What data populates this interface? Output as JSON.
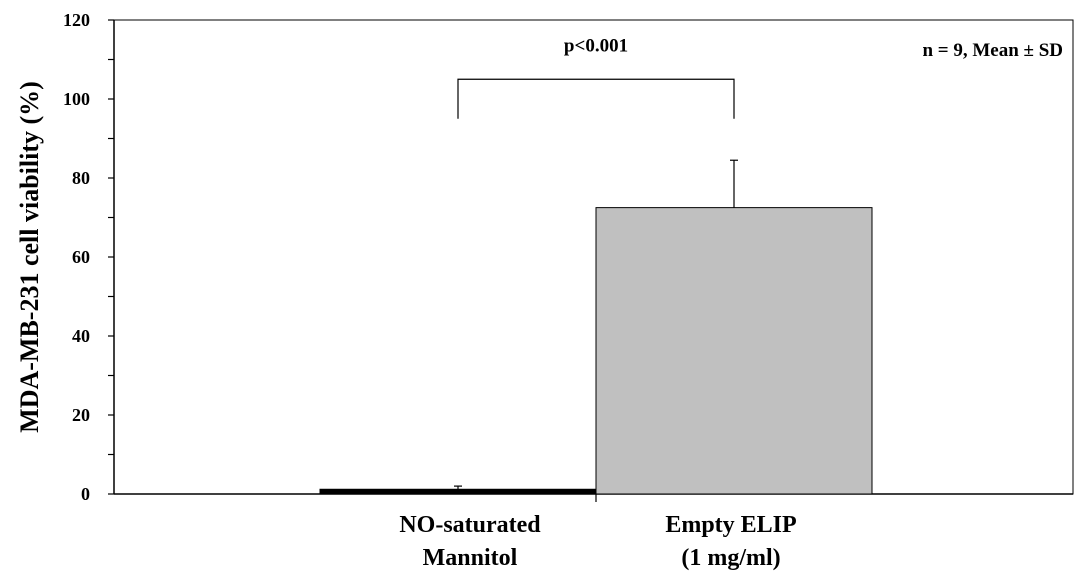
{
  "chart_data": {
    "type": "bar",
    "categories": [
      [
        "NO-saturated",
        "Mannitol"
      ],
      [
        "Empty ELIP",
        "(1 mg/ml)"
      ]
    ],
    "values": [
      1.2,
      72.5
    ],
    "errors": [
      0.8,
      12
    ],
    "bar_colors": [
      "#000000",
      "#c0c0c0"
    ],
    "ylabel": "MDA-MB-231 cell viability (%)",
    "ylim": [
      0,
      120
    ],
    "yticks": [
      0,
      20,
      40,
      60,
      80,
      100,
      120
    ],
    "significance": {
      "label": "p<0.001",
      "between": [
        0,
        1
      ]
    },
    "note": "n = 9, Mean ± SD",
    "grid": false
  }
}
